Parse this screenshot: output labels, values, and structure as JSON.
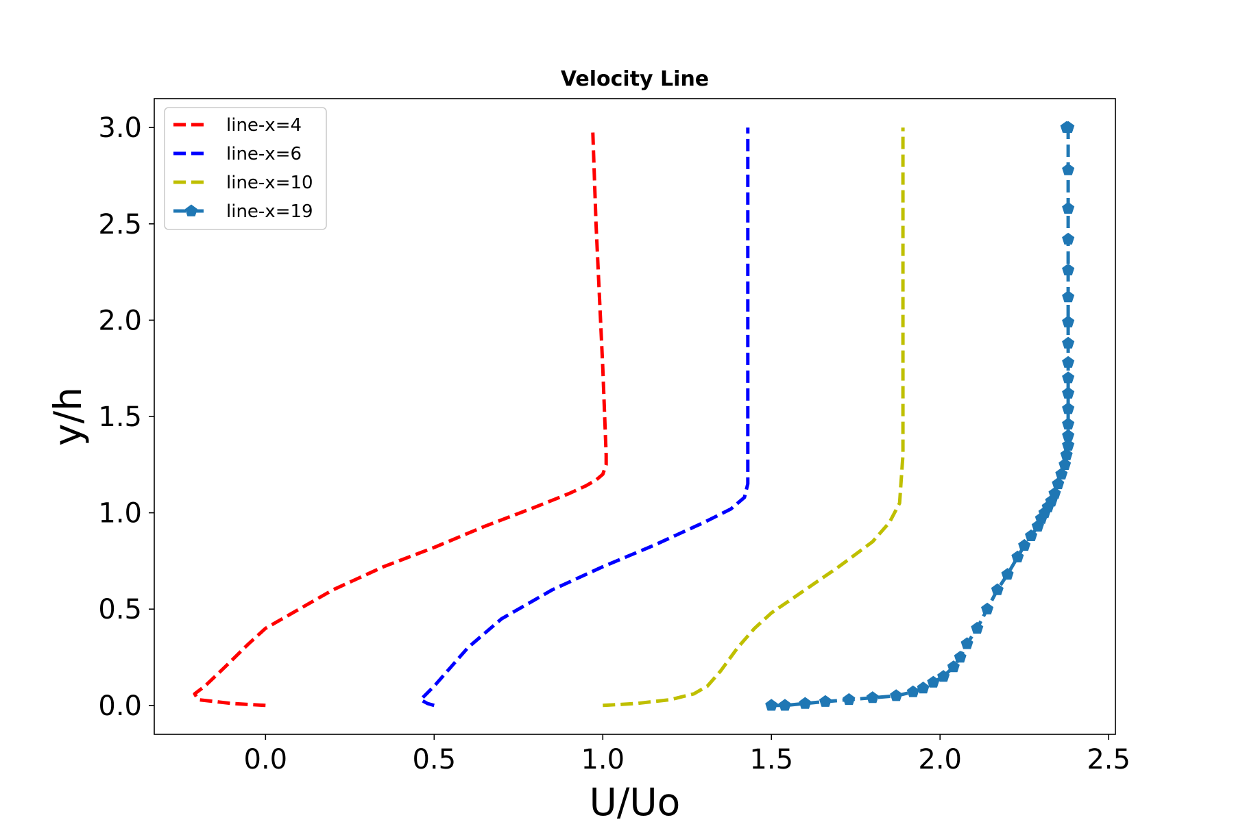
{
  "chart_data": {
    "type": "line",
    "title": "Velocity Line",
    "xlabel": "U/Uo",
    "ylabel": "y/h",
    "xlim": [
      -0.33,
      2.52
    ],
    "ylim": [
      -0.15,
      3.15
    ],
    "xticks": [
      0.0,
      0.5,
      1.0,
      1.5,
      2.0,
      2.5
    ],
    "xtick_labels": [
      "0.0",
      "0.5",
      "1.0",
      "1.5",
      "2.0",
      "2.5"
    ],
    "yticks": [
      0.0,
      0.5,
      1.0,
      1.5,
      2.0,
      2.5,
      3.0
    ],
    "ytick_labels": [
      "0.0",
      "0.5",
      "1.0",
      "1.5",
      "2.0",
      "2.5",
      "3.0"
    ],
    "grid": false,
    "legend_position": "top-left",
    "series": [
      {
        "name": "line-x=4",
        "color": "#ff0000",
        "style": "dashed",
        "marker": "none",
        "x": [
          0.0,
          -0.1,
          -0.2,
          -0.21,
          -0.18,
          -0.12,
          -0.05,
          0.0,
          0.1,
          0.2,
          0.35,
          0.5,
          0.65,
          0.8,
          0.9,
          0.95,
          0.98,
          1.0,
          1.01,
          1.01,
          1.0,
          0.98,
          0.97
        ],
        "y": [
          0.0,
          0.01,
          0.03,
          0.06,
          0.1,
          0.2,
          0.32,
          0.4,
          0.5,
          0.6,
          0.72,
          0.82,
          0.93,
          1.03,
          1.1,
          1.14,
          1.17,
          1.2,
          1.25,
          1.3,
          1.75,
          2.5,
          3.0
        ]
      },
      {
        "name": "line-x=6",
        "color": "#0000ff",
        "style": "dashed",
        "marker": "none",
        "x": [
          0.5,
          0.48,
          0.46,
          0.5,
          0.55,
          0.6,
          0.7,
          0.85,
          1.0,
          1.15,
          1.3,
          1.38,
          1.42,
          1.43,
          1.43,
          1.43,
          1.43
        ],
        "y": [
          0.0,
          0.01,
          0.03,
          0.1,
          0.2,
          0.3,
          0.45,
          0.6,
          0.72,
          0.83,
          0.95,
          1.02,
          1.08,
          1.15,
          1.3,
          2.0,
          3.0
        ]
      },
      {
        "name": "line-x=10",
        "color": "#bfbf00",
        "style": "dashed",
        "marker": "none",
        "x": [
          1.0,
          1.1,
          1.2,
          1.27,
          1.31,
          1.35,
          1.4,
          1.45,
          1.5,
          1.6,
          1.7,
          1.8,
          1.85,
          1.88,
          1.89,
          1.89
        ],
        "y": [
          0.0,
          0.01,
          0.03,
          0.06,
          0.1,
          0.18,
          0.3,
          0.4,
          0.48,
          0.6,
          0.72,
          0.85,
          0.95,
          1.05,
          1.3,
          3.0
        ]
      },
      {
        "name": "line-x=19",
        "color": "#1f77b4",
        "style": "dashed",
        "marker": "pentagon",
        "x": [
          1.5,
          1.54,
          1.6,
          1.66,
          1.73,
          1.8,
          1.87,
          1.92,
          1.95,
          1.98,
          2.01,
          2.04,
          2.06,
          2.08,
          2.11,
          2.14,
          2.17,
          2.2,
          2.23,
          2.25,
          2.27,
          2.29,
          2.3,
          2.31,
          2.32,
          2.33,
          2.34,
          2.35,
          2.36,
          2.37,
          2.375,
          2.38,
          2.38,
          2.38,
          2.38,
          2.38,
          2.38,
          2.38,
          2.38,
          2.38,
          2.38,
          2.38,
          2.38,
          2.38,
          2.38,
          2.38,
          2.38,
          2.375
        ],
        "y": [
          0.0,
          0.0,
          0.01,
          0.02,
          0.03,
          0.04,
          0.05,
          0.07,
          0.09,
          0.12,
          0.15,
          0.2,
          0.25,
          0.32,
          0.4,
          0.5,
          0.6,
          0.68,
          0.77,
          0.83,
          0.88,
          0.93,
          0.97,
          1.0,
          1.03,
          1.06,
          1.1,
          1.15,
          1.2,
          1.25,
          1.3,
          1.35,
          1.4,
          1.46,
          1.54,
          1.62,
          1.7,
          1.78,
          1.88,
          1.99,
          2.12,
          2.26,
          2.42,
          2.58,
          2.78,
          3.0,
          3.0,
          3.0
        ]
      }
    ]
  }
}
